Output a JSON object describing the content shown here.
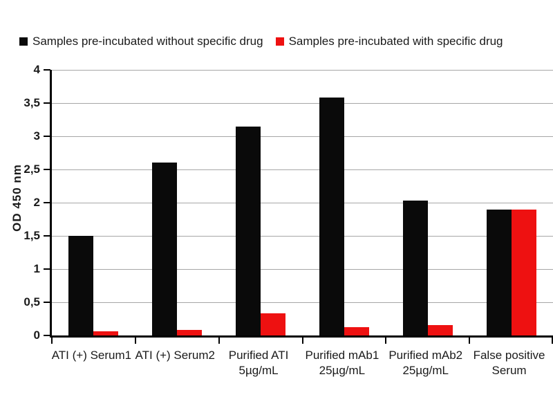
{
  "chart_data": {
    "type": "bar",
    "title": "",
    "xlabel": "",
    "ylabel": "OD 450 nm",
    "ylim": [
      0,
      4
    ],
    "ytick_step": 0.5,
    "ytick_labels_bottom_to_top": [
      "0",
      "0,5",
      "1",
      "1,5",
      "2",
      "2,5",
      "3",
      "3,5",
      "4"
    ],
    "grid": true,
    "legend_position": "top",
    "categories": [
      "ATI (+) Serum1",
      "ATI (+) Serum2",
      "Purified ATI 5µg/mL",
      "Purified mAb1 25µg/mL",
      "Purified mAb2 25µg/mL",
      "False positive Serum"
    ],
    "category_label_lines": [
      [
        "ATI (+) Serum1"
      ],
      [
        "ATI (+) Serum2"
      ],
      [
        "Purified ATI",
        "5µg/mL"
      ],
      [
        "Purified mAb1",
        "25µg/mL"
      ],
      [
        "Purified mAb2",
        "25µg/mL"
      ],
      [
        "False positive",
        "Serum"
      ]
    ],
    "series": [
      {
        "name": "Samples pre-incubated without specific drug",
        "color": "#0a0a0a",
        "values": [
          1.5,
          2.6,
          3.15,
          3.58,
          2.03,
          1.9
        ]
      },
      {
        "name": "Samples pre-incubated with specific drug",
        "color": "#ee1111",
        "values": [
          0.06,
          0.08,
          0.33,
          0.13,
          0.16,
          1.9
        ]
      }
    ]
  },
  "colors": {
    "background": "#ffffff",
    "axis": "#000000",
    "gridline": "#a6a6a6",
    "text": "#1a1a1a"
  }
}
